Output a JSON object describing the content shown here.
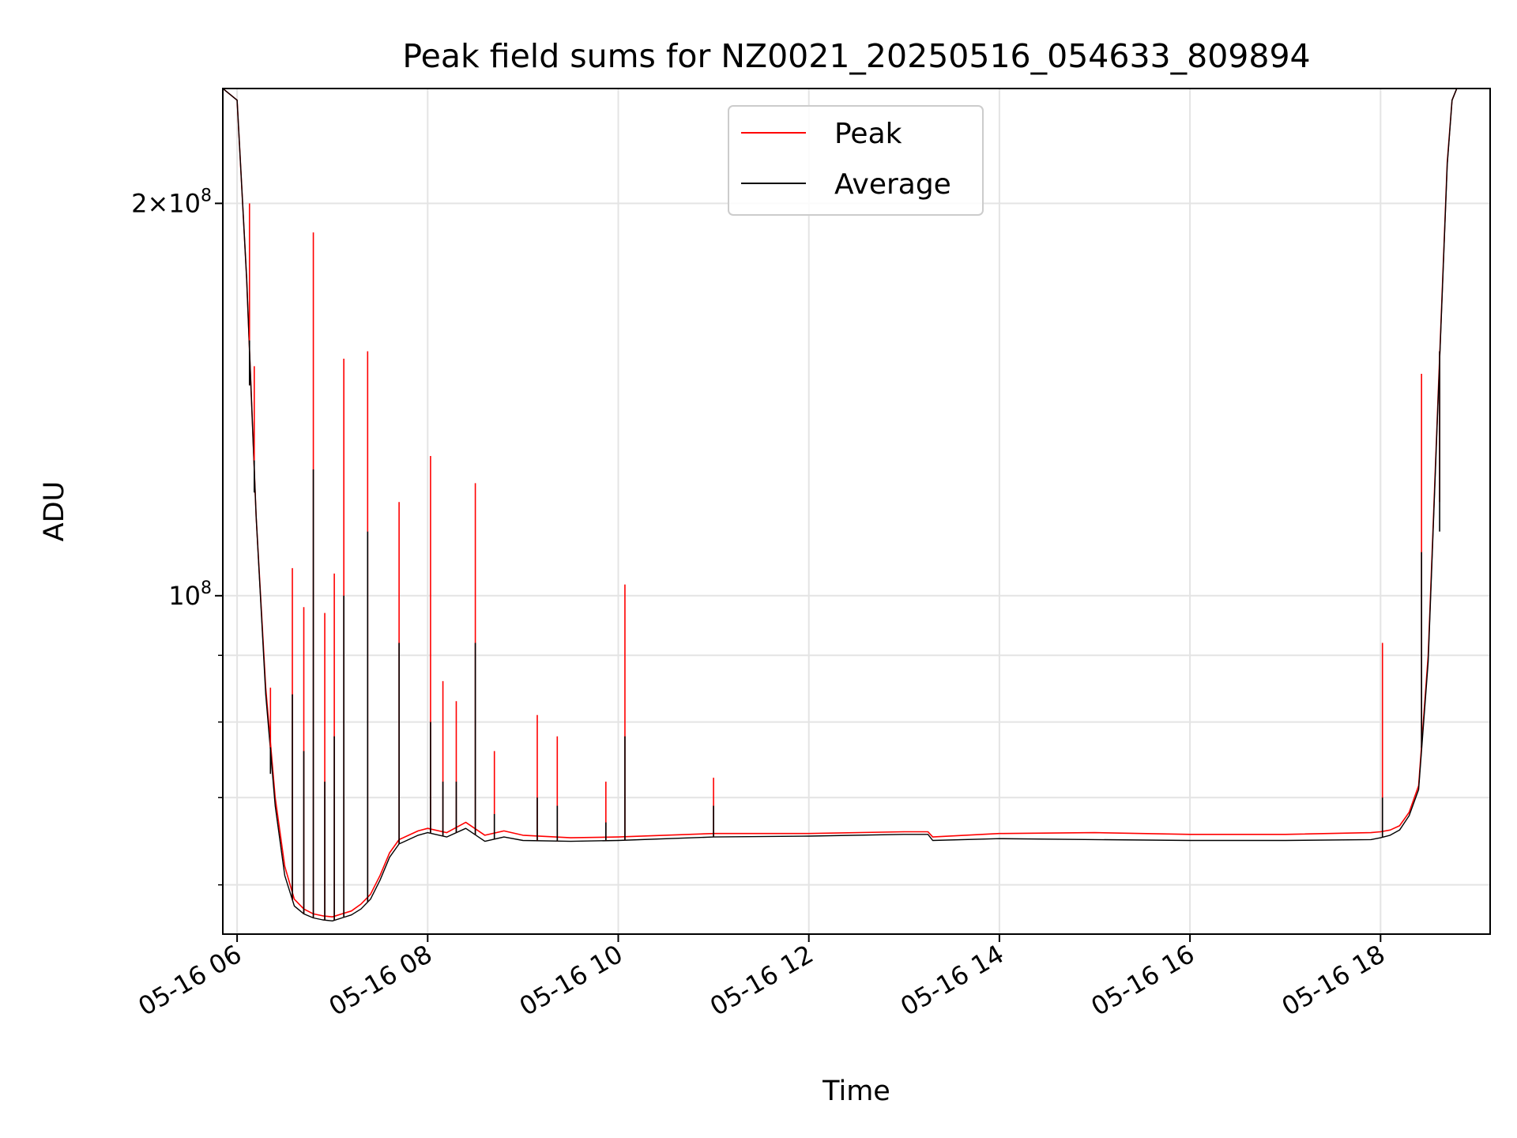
{
  "chart_data": {
    "type": "line",
    "title": "Peak field sums for NZ0021_20250516_054633_809894",
    "xlabel": "Time",
    "ylabel": "ADU",
    "y_scale": "log",
    "grid": true,
    "legend_position": "top-center",
    "xlim_hours": [
      5.85,
      19.15
    ],
    "ylim": [
      55000000,
      245000000
    ],
    "x_ticks": [
      {
        "value": 6,
        "label": "05-16 06"
      },
      {
        "value": 8,
        "label": "05-16 08"
      },
      {
        "value": 10,
        "label": "05-16 10"
      },
      {
        "value": 12,
        "label": "05-16 12"
      },
      {
        "value": 14,
        "label": "05-16 14"
      },
      {
        "value": 16,
        "label": "05-16 16"
      },
      {
        "value": 18,
        "label": "05-16 18"
      }
    ],
    "y_major_ticks": [
      {
        "value": 100000000,
        "mant": "",
        "exp": "8"
      },
      {
        "value": 200000000,
        "mant": "2×",
        "exp": "8"
      }
    ],
    "y_minor_ticks": [
      60000000,
      70000000,
      80000000,
      90000000
    ],
    "series": [
      {
        "name": "Peak",
        "color": "#ff0000",
        "x": [
          5.85,
          6.0,
          6.1,
          6.2,
          6.3,
          6.4,
          6.5,
          6.6,
          6.7,
          6.8,
          6.9,
          7.0,
          7.1,
          7.2,
          7.3,
          7.4,
          7.5,
          7.6,
          7.7,
          7.8,
          7.9,
          8.0,
          8.2,
          8.4,
          8.6,
          8.8,
          9.0,
          9.5,
          10.0,
          11.0,
          12.0,
          13.0,
          13.25,
          13.3,
          14.0,
          15.0,
          16.0,
          17.0,
          17.9,
          18.0,
          18.1,
          18.2,
          18.3,
          18.4,
          18.5,
          18.6,
          18.7,
          18.75,
          18.8,
          19.15
        ],
        "y": [
          245000000,
          240000000,
          175000000,
          115000000,
          85000000,
          70000000,
          62000000,
          58500000,
          57500000,
          57000000,
          56800000,
          56700000,
          57000000,
          57300000,
          58000000,
          59000000,
          61000000,
          63500000,
          65000000,
          65500000,
          66000000,
          66300000,
          65800000,
          67000000,
          65500000,
          66000000,
          65500000,
          65200000,
          65300000,
          65700000,
          65700000,
          65900000,
          65900000,
          65300000,
          65700000,
          65800000,
          65600000,
          65600000,
          65800000,
          65900000,
          66100000,
          66600000,
          68200000,
          71500000,
          90000000,
          140000000,
          215000000,
          240000000,
          245000000,
          245000000
        ]
      },
      {
        "name": "Average",
        "color": "#000000",
        "x": [
          5.85,
          6.0,
          6.1,
          6.2,
          6.3,
          6.4,
          6.5,
          6.6,
          6.7,
          6.8,
          6.9,
          7.0,
          7.1,
          7.2,
          7.3,
          7.4,
          7.5,
          7.6,
          7.7,
          7.8,
          7.9,
          8.0,
          8.2,
          8.4,
          8.6,
          8.8,
          9.0,
          9.5,
          10.0,
          11.0,
          12.0,
          13.0,
          13.25,
          13.3,
          14.0,
          15.0,
          16.0,
          17.0,
          17.9,
          18.0,
          18.1,
          18.2,
          18.3,
          18.4,
          18.5,
          18.6,
          18.7,
          18.75,
          18.8,
          19.15
        ],
        "y": [
          245000000,
          240000000,
          175000000,
          115000000,
          84000000,
          69000000,
          61000000,
          57800000,
          57000000,
          56600000,
          56400000,
          56300000,
          56600000,
          56900000,
          57500000,
          58500000,
          60500000,
          63000000,
          64500000,
          65000000,
          65500000,
          65800000,
          65300000,
          66300000,
          64800000,
          65300000,
          64900000,
          64800000,
          64900000,
          65300000,
          65400000,
          65600000,
          65600000,
          64900000,
          65100000,
          65000000,
          64900000,
          64900000,
          65000000,
          65200000,
          65500000,
          66100000,
          67800000,
          71000000,
          89000000,
          139000000,
          214000000,
          240000000,
          245000000,
          245000000
        ]
      }
    ],
    "spikes": [
      {
        "x": 6.13,
        "y": 200000000,
        "avg": 145000000
      },
      {
        "x": 6.18,
        "y": 150000000,
        "avg": 120000000
      },
      {
        "x": 6.35,
        "y": 85000000,
        "avg": 73000000
      },
      {
        "x": 6.58,
        "y": 105000000,
        "avg": 84000000
      },
      {
        "x": 6.7,
        "y": 98000000,
        "avg": 76000000
      },
      {
        "x": 6.8,
        "y": 190000000,
        "avg": 125000000
      },
      {
        "x": 6.92,
        "y": 97000000,
        "avg": 72000000
      },
      {
        "x": 7.02,
        "y": 104000000,
        "avg": 78000000
      },
      {
        "x": 7.12,
        "y": 152000000,
        "avg": 100000000
      },
      {
        "x": 7.37,
        "y": 154000000,
        "avg": 112000000
      },
      {
        "x": 7.7,
        "y": 118000000,
        "avg": 92000000
      },
      {
        "x": 8.03,
        "y": 128000000,
        "avg": 80000000
      },
      {
        "x": 8.16,
        "y": 86000000,
        "avg": 72000000
      },
      {
        "x": 8.3,
        "y": 83000000,
        "avg": 72000000
      },
      {
        "x": 8.5,
        "y": 122000000,
        "avg": 92000000
      },
      {
        "x": 8.7,
        "y": 76000000,
        "avg": 68000000
      },
      {
        "x": 9.15,
        "y": 81000000,
        "avg": 70000000
      },
      {
        "x": 9.36,
        "y": 78000000,
        "avg": 69000000
      },
      {
        "x": 9.87,
        "y": 72000000,
        "avg": 67000000
      },
      {
        "x": 10.07,
        "y": 102000000,
        "avg": 78000000
      },
      {
        "x": 11.0,
        "y": 72500000,
        "avg": 69000000
      },
      {
        "x": 18.02,
        "y": 92000000,
        "avg": 70000000
      },
      {
        "x": 18.43,
        "y": 148000000,
        "avg": 108000000
      },
      {
        "x": 18.62,
        "y": 118000000,
        "avg": 112000000
      }
    ]
  }
}
